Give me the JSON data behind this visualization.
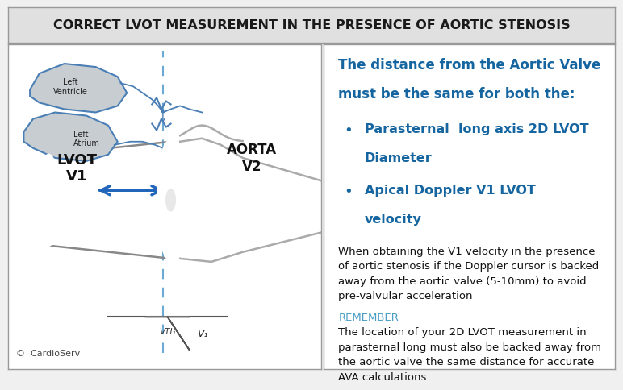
{
  "title": "CORRECT LVOT MEASUREMENT IN THE PRESENCE OF AORTIC STENOSIS",
  "title_fontsize": 11.5,
  "title_bg": "#e0e0e0",
  "title_color": "#1a1a1a",
  "bg_color": "#f0f0f0",
  "panel_bg": "#ffffff",
  "border_color": "#999999",
  "blue_header_line1": "The distance from the Aortic Valve",
  "blue_header_line2": "must be the same for both the:",
  "blue_header_color": "#1565a0",
  "blue_header_fontsize": 12,
  "bullet1_line1": "Parasternal  long axis 2D LVOT",
  "bullet1_line2": "Diameter",
  "bullet2_line1": "Apical Doppler V1 LVOT",
  "bullet2_line2": "velocity",
  "bullet_color": "#1565a0",
  "bullet_fontsize": 11.5,
  "body_text": "When obtaining the V1 velocity in the presence\nof aortic stenosis if the Doppler cursor is backed\naway from the aortic valve (5-10mm) to avoid\npre-valvular acceleration",
  "remember_text": "REMEMBER",
  "remember_color": "#4a9ec4",
  "footer_text": "The location of your 2D LVOT measurement in\nparasternal long must also be backed away from\nthe aortic valve the same distance for accurate\nAVA calculations",
  "body_fontsize": 9.5,
  "copyright": "©  CardioServ",
  "lvot_label": "LVOT\nV1",
  "aorta_label": "AORTA\nV2",
  "vti_label": "VTI₁",
  "v1_label": "V₁",
  "left_ventricle_label": "Left\nVentricle",
  "left_atrium_label": "Left\nAtrium",
  "diagram_blue": "#4a7fb5",
  "arrow_color": "#2266bb",
  "dashed_line_color": "#6aaad4",
  "cylinder_color": "#888888",
  "valve_color": "#222222"
}
